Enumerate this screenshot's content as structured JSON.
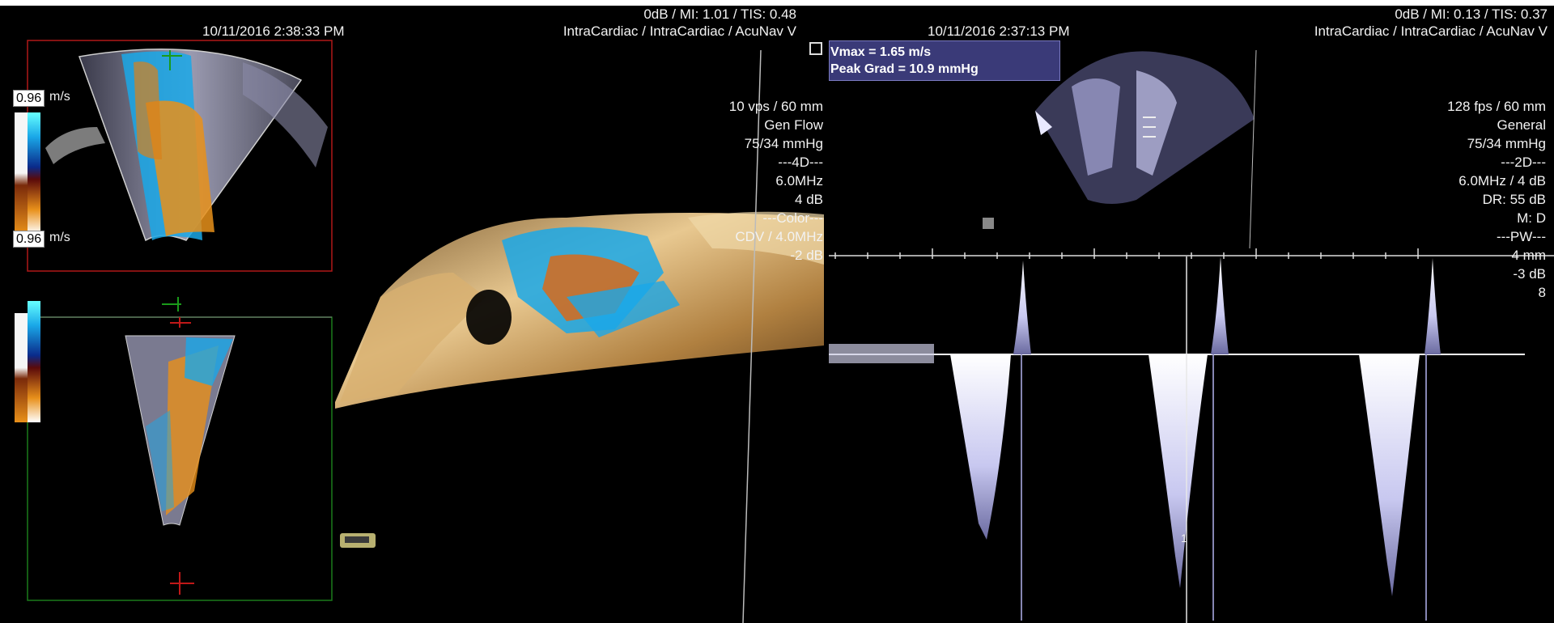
{
  "left_panel": {
    "timestamp": "10/11/2016 2:38:33 PM",
    "header_line1": "0dB / MI: 1.01 / TIS: 0.48",
    "header_line2": "IntraCardiac / IntraCardiac / AcuNav V",
    "scale_top_value": "0.96",
    "scale_bottom_value": "0.96",
    "scale_unit": "m/s",
    "params": [
      "10 vps / 60 mm",
      "Gen Flow",
      "75/34 mmHg",
      "---4D---",
      "6.0MHz",
      "4 dB",
      "---Color---",
      "CDV / 4.0MHz",
      "-2 dB"
    ]
  },
  "right_panel": {
    "timestamp": "10/11/2016 2:37:13 PM",
    "header_line1": "0dB / MI: 0.13 / TIS: 0.37",
    "header_line2": "IntraCardiac / IntraCardiac / AcuNav V",
    "params": [
      "128 fps / 60 mm",
      "General",
      "75/34 mmHg",
      "---2D---",
      "6.0MHz / 4 dB",
      "DR: 55 dB",
      "M: D",
      "---PW---",
      "4 mm",
      "-3 dB",
      "8"
    ],
    "cursor_marker": "1"
  },
  "measurement": {
    "vmax": "Vmax = 1.65 m/s",
    "peak_grad": "Peak Grad = 10.9 mmHg"
  },
  "colors": {
    "background": "#000000",
    "doppler_blue": "#1aa8e8",
    "doppler_orange": "#e8901a",
    "render_gold": "#c89a5a",
    "measure_box": "#3a3a78",
    "view_frame_red": "#b01818",
    "view_frame_green": "#1a7a1a"
  }
}
